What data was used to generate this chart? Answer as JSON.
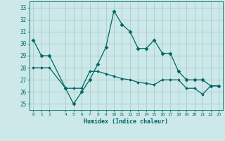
{
  "xlabel": "Humidex (Indice chaleur)",
  "background_color": "#cce8e8",
  "grid_color": "#aacccc",
  "line_color": "#006666",
  "xlim": [
    -0.5,
    23.5
  ],
  "ylim": [
    24.5,
    33.5
  ],
  "yticks": [
    25,
    26,
    27,
    28,
    29,
    30,
    31,
    32,
    33
  ],
  "xticks": [
    0,
    1,
    2,
    4,
    5,
    6,
    7,
    8,
    9,
    10,
    11,
    12,
    13,
    14,
    15,
    16,
    17,
    18,
    19,
    20,
    21,
    22,
    23
  ],
  "xtick_labels": [
    "0",
    "1",
    "2",
    "4",
    "5",
    "6",
    "7",
    "8",
    "9",
    "10",
    "11",
    "12",
    "13",
    "14",
    "15",
    "16",
    "17",
    "18",
    "19",
    "20",
    "21",
    "22",
    "23"
  ],
  "line1_x": [
    0,
    1,
    2,
    4,
    5,
    6,
    7,
    8,
    9,
    10,
    11,
    12,
    13,
    14,
    15,
    16,
    17,
    18,
    19,
    20,
    21,
    22,
    23
  ],
  "line1_y": [
    30.3,
    29.0,
    29.0,
    26.3,
    25.0,
    26.0,
    27.0,
    28.3,
    29.7,
    32.7,
    31.6,
    31.0,
    29.6,
    29.6,
    30.3,
    29.2,
    29.2,
    27.7,
    27.0,
    27.0,
    27.0,
    26.5,
    26.5
  ],
  "line2_x": [
    0,
    1,
    2,
    4,
    5,
    6,
    7,
    8,
    9,
    10,
    11,
    12,
    13,
    14,
    15,
    16,
    17,
    18,
    19,
    20,
    21,
    22,
    23
  ],
  "line2_y": [
    28.0,
    28.0,
    28.0,
    26.3,
    26.3,
    26.3,
    27.7,
    27.7,
    27.5,
    27.3,
    27.1,
    27.0,
    26.8,
    26.7,
    26.6,
    27.0,
    27.0,
    27.0,
    26.3,
    26.3,
    25.8,
    26.5,
    26.5
  ]
}
